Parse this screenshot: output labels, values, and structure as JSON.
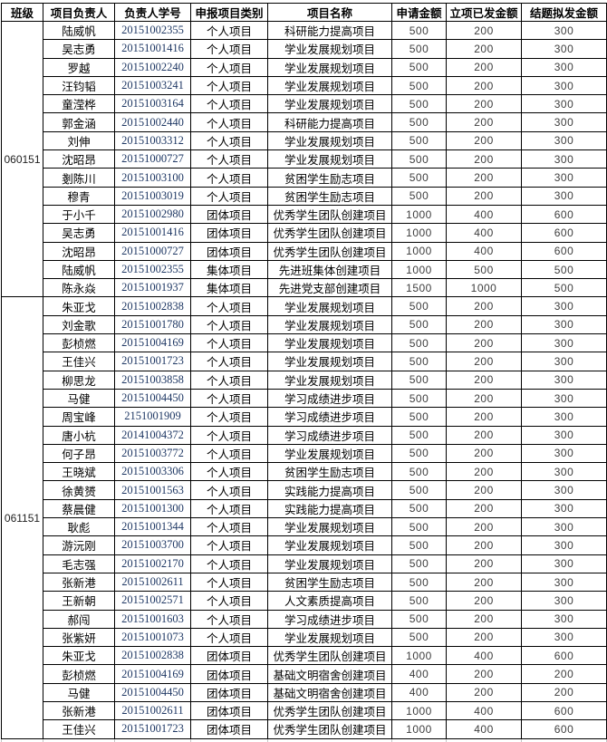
{
  "colors": {
    "grid_border": "#000000",
    "student_id_text": "#1f3864",
    "amount_text": "#3d3d3d",
    "body_text": "#000000",
    "background": "#ffffff"
  },
  "table": {
    "headers": [
      "班级",
      "项目负责人",
      "负责人学号",
      "申报项目类别",
      "项目名称",
      "申请金额",
      "立项已发金额",
      "结题拟发金额"
    ],
    "groups": [
      {
        "class_id": "060151",
        "rows": [
          [
            "陆威帆",
            "20151002355",
            "个人项目",
            "科研能力提高项目",
            500,
            200,
            300
          ],
          [
            "吴志勇",
            "20151001416",
            "个人项目",
            "学业发展规划项目",
            500,
            200,
            300
          ],
          [
            "罗越",
            "20151002240",
            "个人项目",
            "学业发展规划项目",
            500,
            200,
            300
          ],
          [
            "汪钧韬",
            "20151003241",
            "个人项目",
            "学业发展规划项目",
            500,
            200,
            300
          ],
          [
            "童滢桦",
            "20151003164",
            "个人项目",
            "学业发展规划项目",
            500,
            200,
            300
          ],
          [
            "郭金涵",
            "20151002440",
            "个人项目",
            "科研能力提高项目",
            500,
            200,
            300
          ],
          [
            "刘伸",
            "20151003312",
            "个人项目",
            "学业发展规划项目",
            500,
            200,
            300
          ],
          [
            "沈昭昂",
            "20151000727",
            "个人项目",
            "学业发展规划项目",
            500,
            200,
            300
          ],
          [
            "剗陈川",
            "20151003100",
            "个人项目",
            "贫困学生励志项目",
            500,
            200,
            300
          ],
          [
            "穆青",
            "20151003019",
            "个人项目",
            "贫困学生励志项目",
            500,
            200,
            300
          ],
          [
            "于小千",
            "20151002980",
            "团体项目",
            "优秀学生团队创建项目",
            1000,
            400,
            600
          ],
          [
            "吴志勇",
            "20151001416",
            "团体项目",
            "优秀学生团队创建项目",
            1000,
            400,
            600
          ],
          [
            "沈昭昂",
            "20151000727",
            "团体项目",
            "优秀学生团队创建项目",
            1000,
            400,
            600
          ],
          [
            "陆威帆",
            "20151002355",
            "集体项目",
            "先进班集体创建项目",
            1000,
            500,
            500
          ],
          [
            "陈永焱",
            "20151001937",
            "集体项目",
            "先进党支部创建项目",
            1500,
            1000,
            500
          ]
        ]
      },
      {
        "class_id": "061151",
        "rows": [
          [
            "朱亚戈",
            "20151002838",
            "个人项目",
            "学业发展规划项目",
            500,
            200,
            300
          ],
          [
            "刘金歌",
            "20151001780",
            "个人项目",
            "学业发展规划项目",
            500,
            200,
            300
          ],
          [
            "彭桢燃",
            "20151004169",
            "个人项目",
            "学业发展规划项目",
            500,
            200,
            300
          ],
          [
            "王佳兴",
            "20151001723",
            "个人项目",
            "学业发展规划项目",
            500,
            200,
            300
          ],
          [
            "柳思龙",
            "20151003858",
            "个人项目",
            "学业发展规划项目",
            500,
            200,
            300
          ],
          [
            "马健",
            "20151004450",
            "个人项目",
            "学习成绩进步项目",
            500,
            200,
            300
          ],
          [
            "周宝峰",
            "2151001909",
            "个人项目",
            "学习成绩进步项目",
            500,
            200,
            300
          ],
          [
            "唐小杭",
            "20141004372",
            "个人项目",
            "学习成绩进步项目",
            500,
            200,
            300
          ],
          [
            "何子昂",
            "20151003772",
            "个人项目",
            "学业发展规划项目",
            500,
            200,
            300
          ],
          [
            "王晓斌",
            "20151003306",
            "个人项目",
            "贫困学生励志项目",
            500,
            200,
            300
          ],
          [
            "徐黄赟",
            "20151001563",
            "个人项目",
            "实践能力提高项目",
            500,
            200,
            300
          ],
          [
            "蔡晨健",
            "20151001300",
            "个人项目",
            "实践能力提高项目",
            500,
            200,
            300
          ],
          [
            "耿彪",
            "20151001344",
            "个人项目",
            "学业发展规划项目",
            500,
            200,
            300
          ],
          [
            "游沅刚",
            "20151003700",
            "个人项目",
            "学业发展规划项目",
            500,
            200,
            300
          ],
          [
            "毛志强",
            "20151002170",
            "个人项目",
            "学业发展规划项目",
            500,
            200,
            300
          ],
          [
            "张新港",
            "20151002611",
            "个人项目",
            "贫困学生励志项目",
            500,
            200,
            300
          ],
          [
            "王新朝",
            "20151002571",
            "个人项目",
            "人文素质提高项目",
            500,
            200,
            300
          ],
          [
            "郝闯",
            "20151001603",
            "个人项目",
            "学习成绩进步项目",
            500,
            200,
            300
          ],
          [
            "张紫妍",
            "20151001073",
            "个人项目",
            "学业发展规划项目",
            500,
            200,
            300
          ],
          [
            "朱亚戈",
            "20151002838",
            "团体项目",
            "优秀学生团队创建项目",
            1000,
            400,
            600
          ],
          [
            "彭桢燃",
            "20151004169",
            "团体项目",
            "基础文明宿舍创建项目",
            400,
            200,
            200
          ],
          [
            "马健",
            "20151004450",
            "团体项目",
            "基础文明宿舍创建项目",
            400,
            200,
            200
          ],
          [
            "张新港",
            "20151002611",
            "团体项目",
            "优秀学生团队创建项目",
            1000,
            400,
            600
          ],
          [
            "王佳兴",
            "20151001723",
            "团体项目",
            "优秀学生团队创建项目",
            1000,
            400,
            600
          ]
        ]
      }
    ]
  }
}
